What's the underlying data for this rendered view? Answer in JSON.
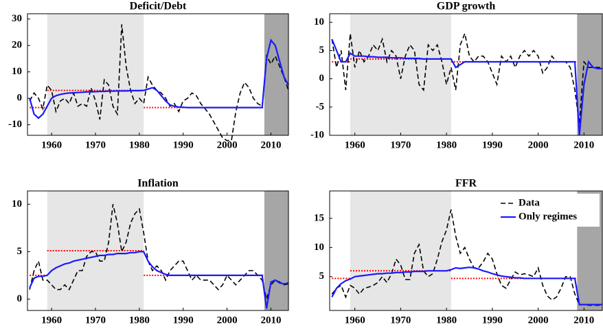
{
  "chart_data": [
    {
      "type": "line",
      "title": "Deficit/Debt",
      "x": [
        1955,
        1956,
        1957,
        1958,
        1959,
        1960,
        1961,
        1962,
        1963,
        1964,
        1965,
        1966,
        1967,
        1968,
        1969,
        1970,
        1971,
        1972,
        1973,
        1974,
        1975,
        1976,
        1977,
        1978,
        1979,
        1980,
        1981,
        1982,
        1983,
        1984,
        1985,
        1986,
        1987,
        1988,
        1989,
        1990,
        1991,
        1992,
        1993,
        1994,
        1995,
        1996,
        1997,
        1998,
        1999,
        2000,
        2001,
        2002,
        2003,
        2004,
        2005,
        2006,
        2007,
        2008,
        2009,
        2010,
        2011,
        2012,
        2013,
        2014
      ],
      "series": [
        {
          "name": "Data",
          "color": "#000000",
          "line_style": "dashed",
          "values": [
            -1,
            2,
            0,
            -4,
            5,
            3,
            -5,
            -1,
            0,
            -2,
            2,
            -3,
            -2,
            -3,
            4,
            -1,
            -8,
            7,
            5,
            -3,
            -6,
            28,
            12,
            3,
            -2,
            0,
            -2,
            8,
            5,
            3,
            2,
            0,
            -3,
            -2,
            -5,
            -1,
            0,
            2,
            1,
            -2,
            -4,
            -6,
            -9,
            -12,
            -15,
            -16,
            -16,
            -5,
            2,
            6,
            4,
            0,
            -2,
            -3,
            16,
            13,
            16,
            12,
            8,
            3
          ]
        },
        {
          "name": "Only regimes",
          "color": "#1a1aff",
          "line_style": "solid",
          "values": [
            0,
            -6,
            -7.5,
            -6,
            -3,
            0,
            1,
            1.5,
            1.8,
            2,
            2.1,
            2.2,
            2.3,
            2.4,
            2.5,
            2.5,
            2.6,
            2.6,
            2.7,
            2.7,
            2.8,
            2.8,
            2.8,
            2.9,
            2.9,
            2.9,
            3,
            3.5,
            4,
            3,
            1,
            -1,
            -2.5,
            -3,
            -3.3,
            -3.4,
            -3.5,
            -3.5,
            -3.5,
            -3.5,
            -3.5,
            -3.5,
            -3.5,
            -3.5,
            -3.5,
            -3.5,
            -3.5,
            -3.5,
            -3.5,
            -3.5,
            -3.5,
            -3.5,
            -3.5,
            -3.5,
            15,
            22,
            20,
            14,
            8,
            5
          ]
        }
      ],
      "regime_means": {
        "color": "#ff0000",
        "line_style": "dotted",
        "segments": [
          {
            "start": 1955,
            "end": 1959,
            "value": -3.5
          },
          {
            "start": 1959,
            "end": 1981,
            "value": 3
          },
          {
            "start": 1981,
            "end": 2008.5,
            "value": -3.5
          }
        ]
      },
      "shaded_regions": [
        {
          "start": 1959,
          "end": 1981,
          "color": "#e6e6e6"
        },
        {
          "start": 2008.5,
          "end": 2014,
          "color": "#a6a6a6"
        }
      ],
      "xlim": [
        1954.5,
        2014
      ],
      "xticks": [
        1960,
        1970,
        1980,
        1990,
        2000,
        2010
      ],
      "ylim": [
        -14,
        32
      ],
      "yticks": [
        -10,
        0,
        10,
        20,
        30
      ]
    },
    {
      "type": "line",
      "title": "GDP growth",
      "x": [
        1955,
        1956,
        1957,
        1958,
        1959,
        1960,
        1961,
        1962,
        1963,
        1964,
        1965,
        1966,
        1967,
        1968,
        1969,
        1970,
        1971,
        1972,
        1973,
        1974,
        1975,
        1976,
        1977,
        1978,
        1979,
        1980,
        1981,
        1982,
        1983,
        1984,
        1985,
        1986,
        1987,
        1988,
        1989,
        1990,
        1991,
        1992,
        1993,
        1994,
        1995,
        1996,
        1997,
        1998,
        1999,
        2000,
        2001,
        2002,
        2003,
        2004,
        2005,
        2006,
        2007,
        2008,
        2009,
        2010,
        2011,
        2012,
        2013,
        2014
      ],
      "series": [
        {
          "name": "Data",
          "color": "#000000",
          "line_style": "dashed",
          "values": [
            7,
            2,
            5,
            -2,
            8,
            2,
            5,
            3,
            4,
            6,
            5,
            7,
            3,
            5,
            4,
            0,
            4,
            6,
            5,
            -1,
            -2,
            6,
            5,
            6,
            3,
            -1,
            2,
            -2,
            6,
            8,
            4,
            3,
            4,
            4,
            3,
            1,
            -1,
            4,
            3,
            4,
            2,
            4,
            5,
            4,
            5,
            4,
            1,
            2,
            4,
            3,
            3,
            3,
            2,
            -2,
            -8,
            3,
            2,
            2,
            2,
            2
          ]
        },
        {
          "name": "Only regimes",
          "color": "#1a1aff",
          "line_style": "solid",
          "values": [
            7,
            5,
            3,
            3,
            4.5,
            4,
            4,
            4,
            3.9,
            3.9,
            3.8,
            3.8,
            3.8,
            3.7,
            3.7,
            3.7,
            3.6,
            3.6,
            3.6,
            3.6,
            3.5,
            3.5,
            3.5,
            3.5,
            3.5,
            3.5,
            3.5,
            2,
            2.5,
            3,
            3,
            3,
            3,
            3,
            3,
            3,
            3,
            3,
            3,
            3,
            3,
            3,
            3,
            3,
            3,
            3,
            3,
            3,
            3,
            3,
            3,
            3,
            3,
            3,
            -10,
            -1,
            3,
            2,
            1.8,
            1.8
          ]
        }
      ],
      "regime_means": {
        "color": "#ff0000",
        "line_style": "dotted",
        "segments": [
          {
            "start": 1955,
            "end": 1959,
            "value": 3
          },
          {
            "start": 1959,
            "end": 1981,
            "value": 3.5
          },
          {
            "start": 1981,
            "end": 2008.5,
            "value": 3
          }
        ]
      },
      "shaded_regions": [
        {
          "start": 1959,
          "end": 1981,
          "color": "#e6e6e6"
        },
        {
          "start": 2008.5,
          "end": 2014,
          "color": "#a6a6a6"
        }
      ],
      "xlim": [
        1954.5,
        2014
      ],
      "xticks": [
        1960,
        1970,
        1980,
        1990,
        2000,
        2010
      ],
      "ylim": [
        -10,
        11.5
      ],
      "yticks": [
        -10,
        -5,
        0,
        5,
        10
      ]
    },
    {
      "type": "line",
      "title": "Inflation",
      "x": [
        1955,
        1956,
        1957,
        1958,
        1959,
        1960,
        1961,
        1962,
        1963,
        1964,
        1965,
        1966,
        1967,
        1968,
        1969,
        1970,
        1971,
        1972,
        1973,
        1974,
        1975,
        1976,
        1977,
        1978,
        1979,
        1980,
        1981,
        1982,
        1983,
        1984,
        1985,
        1986,
        1987,
        1988,
        1989,
        1990,
        1991,
        1992,
        1993,
        1994,
        1995,
        1996,
        1997,
        1998,
        1999,
        2000,
        2001,
        2002,
        2003,
        2004,
        2005,
        2006,
        2007,
        2008,
        2009,
        2010,
        2011,
        2012,
        2013,
        2014
      ],
      "series": [
        {
          "name": "Data",
          "color": "#000000",
          "line_style": "dashed",
          "values": [
            1,
            3,
            4,
            2,
            2,
            1.5,
            1,
            1,
            1.5,
            1,
            2,
            3,
            3,
            4.5,
            5,
            5,
            4,
            4,
            6,
            10,
            8,
            5,
            6,
            8,
            9,
            9.5,
            7,
            4,
            3,
            3.5,
            3,
            2,
            3,
            3.5,
            4,
            4,
            3,
            2,
            2.5,
            2,
            2,
            2,
            1.5,
            1,
            1.5,
            2.5,
            2,
            1.5,
            2,
            2.5,
            3,
            3,
            2.5,
            2,
            0,
            1.5,
            2,
            1.8,
            1.5,
            1.6
          ]
        },
        {
          "name": "Only regimes",
          "color": "#1a1aff",
          "line_style": "solid",
          "values": [
            1.2,
            2.2,
            2.4,
            2.4,
            2.5,
            3,
            3.3,
            3.5,
            3.7,
            3.8,
            4,
            4.1,
            4.2,
            4.3,
            4.4,
            4.5,
            4.6,
            4.6,
            4.7,
            4.7,
            4.8,
            4.8,
            4.8,
            4.9,
            4.9,
            5,
            5,
            4,
            3.4,
            3,
            2.8,
            2.6,
            2.5,
            2.5,
            2.5,
            2.5,
            2.5,
            2.5,
            2.5,
            2.5,
            2.5,
            2.5,
            2.5,
            2.5,
            2.5,
            2.5,
            2.5,
            2.5,
            2.5,
            2.5,
            2.5,
            2.5,
            2.5,
            2.5,
            -1,
            1.8,
            2,
            1.7,
            1.6,
            1.7
          ]
        }
      ],
      "regime_means": {
        "color": "#ff0000",
        "line_style": "dotted",
        "segments": [
          {
            "start": 1955,
            "end": 1959,
            "value": 2.5
          },
          {
            "start": 1959,
            "end": 1981,
            "value": 5.1
          },
          {
            "start": 1981,
            "end": 2008.5,
            "value": 2.5
          }
        ]
      },
      "shaded_regions": [
        {
          "start": 1959,
          "end": 1981,
          "color": "#e6e6e6"
        },
        {
          "start": 2008.5,
          "end": 2014,
          "color": "#a6a6a6"
        }
      ],
      "xlim": [
        1954.5,
        2014
      ],
      "xticks": [
        1960,
        1970,
        1980,
        1990,
        2000,
        2010
      ],
      "ylim": [
        -1.2,
        11.4
      ],
      "yticks": [
        0,
        5,
        10
      ]
    },
    {
      "type": "line",
      "title": "FFR",
      "legend": "upper right",
      "x": [
        1955,
        1956,
        1957,
        1958,
        1959,
        1960,
        1961,
        1962,
        1963,
        1964,
        1965,
        1966,
        1967,
        1968,
        1969,
        1970,
        1971,
        1972,
        1973,
        1974,
        1975,
        1976,
        1977,
        1978,
        1979,
        1980,
        1981,
        1982,
        1983,
        1984,
        1985,
        1986,
        1987,
        1988,
        1989,
        1990,
        1991,
        1992,
        1993,
        1994,
        1995,
        1996,
        1997,
        1998,
        1999,
        2000,
        2001,
        2002,
        2003,
        2004,
        2005,
        2006,
        2007,
        2008,
        2009,
        2010,
        2011,
        2012,
        2013,
        2014
      ],
      "series": [
        {
          "name": "Data",
          "color": "#000000",
          "line_style": "dashed",
          "values": [
            2,
            3,
            3.5,
            1.5,
            3.5,
            3,
            2,
            3,
            3.2,
            3.5,
            4,
            5,
            4,
            5.5,
            8,
            7,
            4.5,
            4.5,
            9,
            10.5,
            6,
            5,
            5.5,
            8,
            11,
            13,
            16.5,
            12,
            9,
            10,
            8,
            6.5,
            6.5,
            7.5,
            9,
            8,
            5.5,
            3.5,
            3,
            4.5,
            5.8,
            5.3,
            5.5,
            5.3,
            5,
            6.5,
            3.5,
            1.7,
            1,
            1.5,
            3,
            5,
            5,
            2,
            0.2,
            0.2,
            0.1,
            0.1,
            0.1,
            0.1
          ]
        },
        {
          "name": "Only regimes",
          "color": "#1a1aff",
          "line_style": "solid",
          "values": [
            1.5,
            3,
            3.8,
            4.3,
            4.6,
            5,
            5.1,
            5.2,
            5.3,
            5.4,
            5.5,
            5.5,
            5.6,
            5.6,
            5.7,
            5.7,
            5.8,
            5.8,
            5.9,
            5.9,
            5.9,
            6,
            6,
            6,
            6,
            6,
            6.2,
            6.5,
            6.4,
            6.5,
            6.6,
            6.5,
            6.3,
            6,
            5.8,
            5.5,
            5.3,
            5.1,
            5,
            4.9,
            4.8,
            4.8,
            4.7,
            4.7,
            4.7,
            4.7,
            4.7,
            4.7,
            4.7,
            4.7,
            4.7,
            4.7,
            4.7,
            4.7,
            0.2,
            0.2,
            0.2,
            0.2,
            0.2,
            0.2
          ]
        }
      ],
      "regime_means": {
        "color": "#ff0000",
        "line_style": "dotted",
        "segments": [
          {
            "start": 1955,
            "end": 1959,
            "value": 4.7
          },
          {
            "start": 1959,
            "end": 1981,
            "value": 6
          },
          {
            "start": 1981,
            "end": 2008.5,
            "value": 4.7
          }
        ]
      },
      "shaded_regions": [
        {
          "start": 1959,
          "end": 1981,
          "color": "#e6e6e6"
        },
        {
          "start": 2008.5,
          "end": 2014,
          "color": "#a6a6a6"
        }
      ],
      "xlim": [
        1954.5,
        2014
      ],
      "xticks": [
        1960,
        1970,
        1980,
        1990,
        2000,
        2010
      ],
      "ylim": [
        -0.8,
        19.7
      ],
      "yticks": [
        5,
        10,
        15
      ]
    }
  ]
}
